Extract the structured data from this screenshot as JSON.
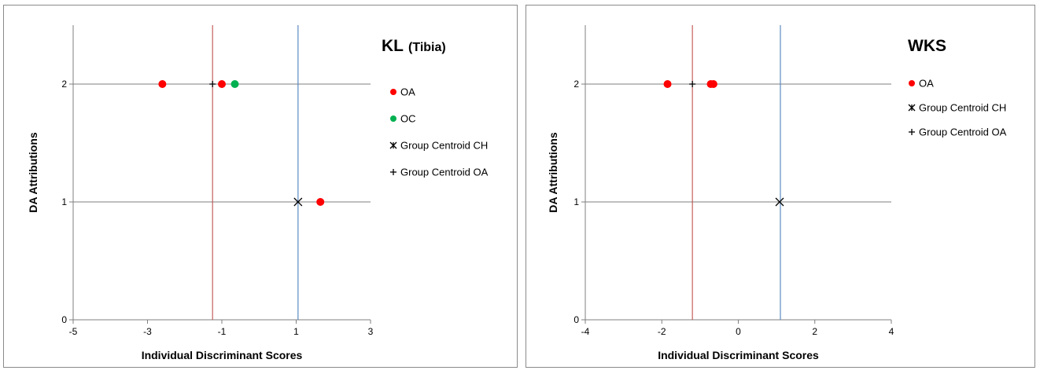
{
  "chart_data": [
    {
      "type": "scatter",
      "title": "KL",
      "title_suffix": "(Tibia)",
      "xlabel": "Individual Discriminant Scores",
      "ylabel": "DA Attributions",
      "xlim": [
        -5,
        3
      ],
      "ylim": [
        0,
        2.5
      ],
      "x_ticks": [
        -5,
        -3,
        -1,
        1,
        3
      ],
      "x_tick_labels": [
        "-5",
        "-3",
        "-1",
        "1",
        "3"
      ],
      "y_ticks": [
        0,
        1,
        2
      ],
      "y_tick_labels": [
        "0",
        "1",
        "2"
      ],
      "hlines": [
        {
          "y": 2,
          "color": "#7f7f7f"
        },
        {
          "y": 1,
          "color": "#7f7f7f"
        }
      ],
      "vlines": [
        {
          "x": -1.25,
          "color": "#c0504d"
        },
        {
          "x": 1.05,
          "color": "#4f81bd"
        }
      ],
      "series": [
        {
          "name": "OA",
          "marker": "dot",
          "color": "#ff0000",
          "points": [
            {
              "x": -2.6,
              "y": 2
            },
            {
              "x": -1.0,
              "y": 2
            },
            {
              "x": 1.65,
              "y": 1
            }
          ]
        },
        {
          "name": "OC",
          "marker": "dot",
          "color": "#00b050",
          "points": [
            {
              "x": -0.65,
              "y": 2
            }
          ]
        },
        {
          "name": "Group Centroid CH",
          "marker": "star",
          "color": "#000000",
          "points": [
            {
              "x": 1.05,
              "y": 1
            }
          ]
        },
        {
          "name": "Group Centroid OA",
          "marker": "plus",
          "color": "#000000",
          "points": [
            {
              "x": -1.25,
              "y": 2
            }
          ]
        }
      ],
      "legend_position": "right"
    },
    {
      "type": "scatter",
      "title": "WKS",
      "title_suffix": "",
      "xlabel": "Individual Discriminant Scores",
      "ylabel": "DA Attributions",
      "xlim": [
        -4,
        4
      ],
      "ylim": [
        0,
        2.5
      ],
      "x_ticks": [
        -4,
        -2,
        0,
        2,
        4
      ],
      "x_tick_labels": [
        "-4",
        "-2",
        "0",
        "2",
        "4"
      ],
      "y_ticks": [
        0,
        1,
        2
      ],
      "y_tick_labels": [
        "0",
        "1",
        "2"
      ],
      "hlines": [
        {
          "y": 2,
          "color": "#7f7f7f"
        },
        {
          "y": 1,
          "color": "#7f7f7f"
        }
      ],
      "vlines": [
        {
          "x": -1.2,
          "color": "#c0504d"
        },
        {
          "x": 1.1,
          "color": "#4f81bd"
        }
      ],
      "series": [
        {
          "name": "OA",
          "marker": "dot",
          "color": "#ff0000",
          "points": [
            {
              "x": -1.85,
              "y": 2
            },
            {
              "x": -0.72,
              "y": 2
            },
            {
              "x": -0.65,
              "y": 2
            }
          ]
        },
        {
          "name": "Group Centroid CH",
          "marker": "star",
          "color": "#000000",
          "points": [
            {
              "x": 1.08,
              "y": 1
            }
          ]
        },
        {
          "name": "Group Centroid OA",
          "marker": "plus",
          "color": "#000000",
          "points": [
            {
              "x": -1.2,
              "y": 2
            }
          ]
        }
      ],
      "legend": [
        {
          "name": "OA",
          "marker": "dot",
          "color": "#ff0000"
        },
        {
          "name": "Group Centroid CH",
          "marker": "star",
          "color": "#000000"
        },
        {
          "name": "Group Centroid OA",
          "marker": "plus",
          "color": "#000000"
        }
      ],
      "legend_position": "right"
    }
  ]
}
